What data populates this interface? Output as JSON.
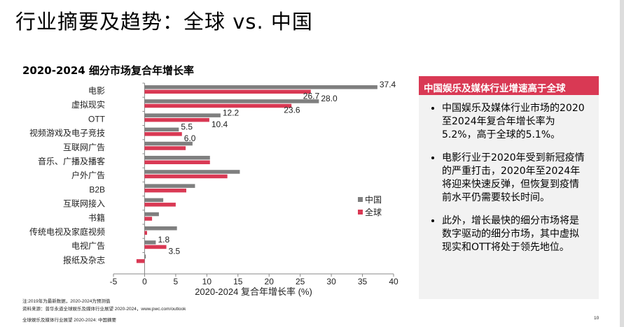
{
  "header": {
    "title": "行业摘要及趋势：全球 vs. 中国"
  },
  "chart_title": "2020-2024 细分市场复合年增长率",
  "chart_data": {
    "type": "bar",
    "orientation": "horizontal",
    "categories": [
      "电影",
      "虚拟现实",
      "OTT",
      "视频游戏及电子竞技",
      "互联网广告",
      "音乐、广播及播客",
      "户外广告",
      "B2B",
      "互联网接入",
      "书籍",
      "传统电视及家庭视频",
      "电视广告",
      "报纸及杂志"
    ],
    "series": [
      {
        "name": "中国",
        "color": "#7f7f7f",
        "values": [
          37.4,
          28.0,
          12.2,
          5.5,
          7.7,
          10.5,
          15.3,
          8.1,
          3.0,
          2.3,
          5.2,
          1.8,
          0.2
        ],
        "labels": [
          "37.4",
          "28.0",
          "12.2",
          "5.5",
          "",
          "",
          "",
          "",
          "",
          "",
          "",
          "1.8",
          ""
        ]
      },
      {
        "name": "全球",
        "color": "#d93954",
        "values": [
          26.7,
          23.6,
          10.4,
          6.0,
          6.6,
          10.5,
          13.3,
          6.7,
          5.0,
          1.2,
          0.4,
          3.5,
          -1.3
        ],
        "labels": [
          "26.7",
          "23.6",
          "10.4",
          "6.0",
          "",
          "",
          "",
          "",
          "",
          "",
          "",
          "3.5",
          ""
        ]
      }
    ],
    "xlabel": "2020-2024 复合年增长率 (%)",
    "xlim": [
      -5,
      40
    ],
    "xticks": [
      "-5",
      "0",
      "5",
      "10",
      "15",
      "20",
      "25",
      "30",
      "35",
      "40"
    ],
    "grid": false,
    "legend": "right"
  },
  "panel": {
    "heading": "中国娱乐及媒体行业增速高于全球",
    "bullets": [
      "中国娱乐及媒体行业市场的2020至2024年复合年增长率为5.2%，高于全球的5.1%。",
      "电影行业于2020年受到新冠疫情的严重打击，2020年至2024年将迎来快速反弹，但恢复到疫情前水平仍需要较长时间。",
      "此外，增长最快的细分市场将是数字驱动的细分市场，其中虚拟现实和OTT将处于领先地位。"
    ]
  },
  "footer": {
    "note": "注:2019年为最新数据，2020-2024为预测值",
    "source": "资料来源：普华永道全球娱乐及媒体行业展望 2020-2024，www.pwc.com/outlook",
    "doc": "全球娱乐及媒体行业展望 2020-2024: 中国摘要",
    "page": "10"
  }
}
